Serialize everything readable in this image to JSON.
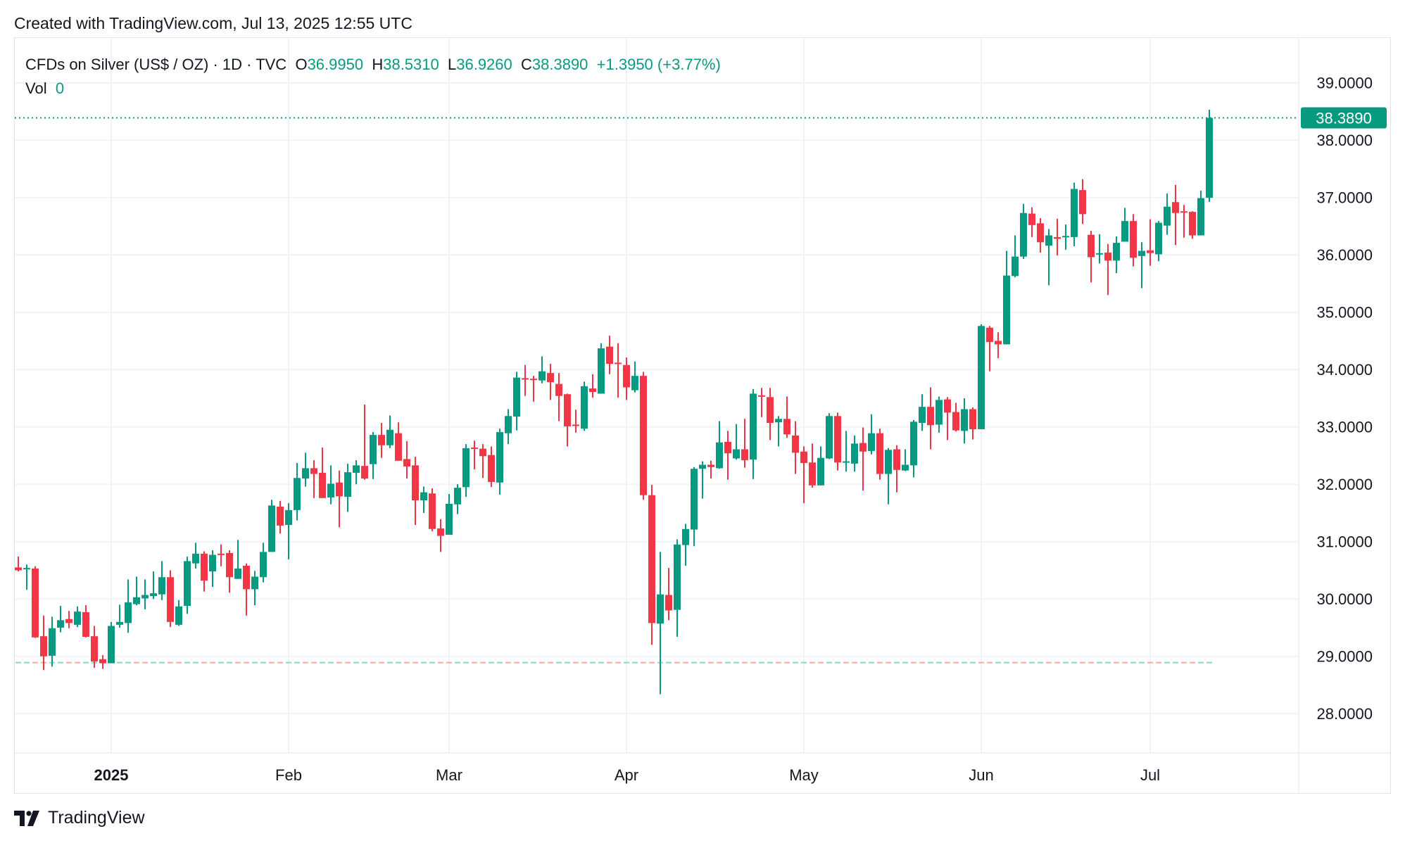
{
  "header": {
    "text": "Created with TradingView.com, Jul 13, 2025 12:55 UTC"
  },
  "legend": {
    "symbol": "CFDs on Silver (US$ / OZ) · 1D · TVC",
    "open_label": "O",
    "open": "36.9950",
    "high_label": "H",
    "high": "38.5310",
    "low_label": "L",
    "low": "36.9260",
    "close_label": "C",
    "close": "38.3890",
    "change": "+1.3950 (+3.77%)",
    "vol_label": "Vol",
    "vol": "0"
  },
  "brand": {
    "logo_icon": "tradingview-logo-icon",
    "name": "TradingView"
  },
  "colors": {
    "up": "#089981",
    "down": "#F23645",
    "grid": "#f0f3fa",
    "text": "#131722"
  },
  "chart_data": {
    "type": "candlestick",
    "title": "",
    "ylim": [
      27.3,
      39.5
    ],
    "grid": true,
    "y_ticks": [
      "28.0000",
      "29.0000",
      "30.0000",
      "31.0000",
      "32.0000",
      "33.0000",
      "34.0000",
      "35.0000",
      "36.0000",
      "37.0000",
      "38.0000",
      "39.0000"
    ],
    "x_ticks": [
      {
        "label": "2025",
        "date": "2025-01-02",
        "bold": true
      },
      {
        "label": "Feb",
        "date": "2025-02-03"
      },
      {
        "label": "Mar",
        "date": "2025-03-03"
      },
      {
        "label": "Apr",
        "date": "2025-04-01"
      },
      {
        "label": "May",
        "date": "2025-05-01"
      },
      {
        "label": "Jun",
        "date": "2025-06-02"
      },
      {
        "label": "Jul",
        "date": "2025-07-01"
      }
    ],
    "last_price": 38.389,
    "last_price_label": "38.3890",
    "reference_line": 28.89,
    "columns": [
      "date",
      "open",
      "high",
      "low",
      "close"
    ],
    "candles": [
      [
        "2024-12-16",
        30.55,
        30.74,
        30.48,
        30.5
      ],
      [
        "2024-12-17",
        30.52,
        30.6,
        30.16,
        30.54
      ],
      [
        "2024-12-18",
        30.53,
        30.57,
        29.32,
        29.33
      ],
      [
        "2024-12-19",
        29.35,
        29.71,
        28.76,
        29.0
      ],
      [
        "2024-12-20",
        29.01,
        29.69,
        28.82,
        29.49
      ],
      [
        "2024-12-23",
        29.5,
        29.88,
        29.42,
        29.63
      ],
      [
        "2024-12-24",
        29.65,
        29.79,
        29.49,
        29.58
      ],
      [
        "2024-12-26",
        29.55,
        29.87,
        29.51,
        29.78
      ],
      [
        "2024-12-27",
        29.77,
        29.89,
        29.33,
        29.34
      ],
      [
        "2024-12-30",
        29.35,
        29.53,
        28.8,
        28.91
      ],
      [
        "2024-12-31",
        28.95,
        29.02,
        28.78,
        28.88
      ],
      [
        "2025-01-02",
        28.88,
        29.6,
        28.88,
        29.53
      ],
      [
        "2025-01-03",
        29.55,
        29.9,
        29.5,
        29.6
      ],
      [
        "2025-01-06",
        29.58,
        30.34,
        29.41,
        29.94
      ],
      [
        "2025-01-07",
        29.91,
        30.39,
        29.89,
        30.03
      ],
      [
        "2025-01-08",
        30.01,
        30.34,
        29.82,
        30.07
      ],
      [
        "2025-01-09",
        30.05,
        30.48,
        30.0,
        30.1
      ],
      [
        "2025-01-10",
        30.08,
        30.66,
        29.98,
        30.38
      ],
      [
        "2025-01-13",
        30.38,
        30.5,
        29.51,
        29.6
      ],
      [
        "2025-01-14",
        29.55,
        29.98,
        29.53,
        29.87
      ],
      [
        "2025-01-15",
        29.88,
        30.74,
        29.74,
        30.66
      ],
      [
        "2025-01-16",
        30.62,
        30.98,
        30.53,
        30.79
      ],
      [
        "2025-01-17",
        30.79,
        30.83,
        30.13,
        30.32
      ],
      [
        "2025-01-21",
        30.48,
        30.85,
        30.21,
        30.77
      ],
      [
        "2025-01-22",
        30.79,
        30.95,
        30.57,
        30.77
      ],
      [
        "2025-01-23",
        30.8,
        30.85,
        30.11,
        30.38
      ],
      [
        "2025-01-24",
        30.35,
        31.03,
        30.35,
        30.53
      ],
      [
        "2025-01-27",
        30.58,
        30.62,
        29.71,
        30.17
      ],
      [
        "2025-01-28",
        30.17,
        30.49,
        29.89,
        30.39
      ],
      [
        "2025-01-29",
        30.38,
        30.98,
        30.29,
        30.82
      ],
      [
        "2025-01-30",
        30.82,
        31.73,
        30.82,
        31.63
      ],
      [
        "2025-01-31",
        31.61,
        31.71,
        31.14,
        31.28
      ],
      [
        "2025-02-03",
        31.29,
        31.67,
        30.69,
        31.55
      ],
      [
        "2025-02-04",
        31.55,
        32.37,
        31.37,
        32.11
      ],
      [
        "2025-02-05",
        32.1,
        32.55,
        31.96,
        32.28
      ],
      [
        "2025-02-06",
        32.28,
        32.42,
        31.76,
        32.18
      ],
      [
        "2025-02-07",
        32.2,
        32.64,
        31.76,
        31.76
      ],
      [
        "2025-02-10",
        31.77,
        32.33,
        31.65,
        32.01
      ],
      [
        "2025-02-11",
        32.03,
        32.24,
        31.25,
        31.79
      ],
      [
        "2025-02-12",
        31.78,
        32.36,
        31.52,
        32.21
      ],
      [
        "2025-02-13",
        32.2,
        32.42,
        32.0,
        32.33
      ],
      [
        "2025-02-14",
        32.32,
        33.39,
        32.08,
        32.1
      ],
      [
        "2025-02-18",
        32.35,
        32.91,
        32.09,
        32.86
      ],
      [
        "2025-02-19",
        32.86,
        33.07,
        32.46,
        32.68
      ],
      [
        "2025-02-20",
        32.68,
        33.2,
        32.63,
        32.95
      ],
      [
        "2025-02-21",
        32.89,
        33.08,
        32.41,
        32.41
      ],
      [
        "2025-02-24",
        32.44,
        32.75,
        32.1,
        32.31
      ],
      [
        "2025-02-25",
        32.33,
        32.48,
        31.29,
        31.72
      ],
      [
        "2025-02-26",
        31.72,
        31.96,
        31.5,
        31.86
      ],
      [
        "2025-02-27",
        31.84,
        31.93,
        31.18,
        31.22
      ],
      [
        "2025-02-28",
        31.23,
        31.39,
        30.82,
        31.1
      ],
      [
        "2025-03-03",
        31.12,
        31.83,
        31.12,
        31.66
      ],
      [
        "2025-03-04",
        31.65,
        32.0,
        31.48,
        31.94
      ],
      [
        "2025-03-05",
        31.95,
        32.7,
        31.78,
        32.63
      ],
      [
        "2025-03-06",
        32.64,
        32.76,
        32.26,
        32.62
      ],
      [
        "2025-03-07",
        32.62,
        32.7,
        32.11,
        32.49
      ],
      [
        "2025-03-10",
        32.51,
        32.66,
        31.95,
        32.04
      ],
      [
        "2025-03-11",
        32.03,
        32.97,
        31.82,
        32.91
      ],
      [
        "2025-03-12",
        32.89,
        33.31,
        32.7,
        33.19
      ],
      [
        "2025-03-13",
        33.18,
        33.96,
        32.94,
        33.86
      ],
      [
        "2025-03-14",
        33.85,
        34.08,
        33.54,
        33.83
      ],
      [
        "2025-03-17",
        33.84,
        33.89,
        33.44,
        33.82
      ],
      [
        "2025-03-18",
        33.81,
        34.23,
        33.76,
        33.97
      ],
      [
        "2025-03-19",
        33.94,
        34.1,
        33.47,
        33.78
      ],
      [
        "2025-03-20",
        33.75,
        33.94,
        33.1,
        33.54
      ],
      [
        "2025-03-21",
        33.57,
        33.58,
        32.66,
        33.01
      ],
      [
        "2025-03-24",
        33.04,
        33.3,
        32.9,
        33.03
      ],
      [
        "2025-03-25",
        32.97,
        33.79,
        32.93,
        33.71
      ],
      [
        "2025-03-26",
        33.67,
        33.92,
        33.51,
        33.61
      ],
      [
        "2025-03-27",
        33.58,
        34.46,
        33.58,
        34.37
      ],
      [
        "2025-03-28",
        34.4,
        34.59,
        33.92,
        34.1
      ],
      [
        "2025-03-31",
        34.12,
        34.46,
        33.51,
        34.1
      ],
      [
        "2025-04-01",
        34.08,
        34.21,
        33.47,
        33.69
      ],
      [
        "2025-04-02",
        33.64,
        34.14,
        33.6,
        33.89
      ],
      [
        "2025-04-03",
        33.89,
        33.96,
        31.73,
        31.81
      ],
      [
        "2025-04-04",
        31.81,
        31.99,
        29.2,
        29.58
      ],
      [
        "2025-04-07",
        29.57,
        30.82,
        28.34,
        30.08
      ],
      [
        "2025-04-08",
        30.07,
        30.54,
        29.63,
        29.8
      ],
      [
        "2025-04-09",
        29.81,
        31.04,
        29.34,
        30.95
      ],
      [
        "2025-04-10",
        30.94,
        31.31,
        30.58,
        31.22
      ],
      [
        "2025-04-11",
        31.21,
        32.3,
        30.92,
        32.27
      ],
      [
        "2025-04-14",
        32.27,
        32.4,
        31.75,
        32.34
      ],
      [
        "2025-04-15",
        32.34,
        32.41,
        32.1,
        32.3
      ],
      [
        "2025-04-16",
        32.28,
        33.1,
        32.27,
        32.73
      ],
      [
        "2025-04-17",
        32.74,
        32.93,
        32.08,
        32.54
      ],
      [
        "2025-04-21",
        32.45,
        33.05,
        32.43,
        32.61
      ],
      [
        "2025-04-22",
        32.61,
        33.14,
        32.29,
        32.42
      ],
      [
        "2025-04-23",
        32.43,
        33.66,
        32.09,
        33.58
      ],
      [
        "2025-04-24",
        33.55,
        33.68,
        33.17,
        33.53
      ],
      [
        "2025-04-25",
        33.52,
        33.68,
        32.77,
        33.07
      ],
      [
        "2025-04-28",
        33.08,
        33.19,
        32.66,
        33.14
      ],
      [
        "2025-04-29",
        33.14,
        33.53,
        32.81,
        32.87
      ],
      [
        "2025-04-30",
        32.85,
        33.1,
        32.18,
        32.55
      ],
      [
        "2025-05-01",
        32.57,
        32.66,
        31.67,
        32.37
      ],
      [
        "2025-05-02",
        32.38,
        32.71,
        31.94,
        31.98
      ],
      [
        "2025-05-05",
        31.98,
        32.66,
        31.98,
        32.46
      ],
      [
        "2025-05-06",
        32.45,
        33.24,
        32.44,
        33.19
      ],
      [
        "2025-05-07",
        33.19,
        33.25,
        32.24,
        32.38
      ],
      [
        "2025-05-08",
        32.39,
        32.93,
        32.22,
        32.4
      ],
      [
        "2025-05-09",
        32.36,
        32.85,
        32.22,
        32.71
      ],
      [
        "2025-05-12",
        32.72,
        32.99,
        31.89,
        32.57
      ],
      [
        "2025-05-13",
        32.58,
        33.22,
        32.52,
        32.89
      ],
      [
        "2025-05-14",
        32.89,
        32.97,
        32.08,
        32.18
      ],
      [
        "2025-05-15",
        32.18,
        32.63,
        31.65,
        32.6
      ],
      [
        "2025-05-16",
        32.61,
        32.68,
        31.86,
        32.25
      ],
      [
        "2025-05-19",
        32.24,
        32.61,
        32.23,
        32.34
      ],
      [
        "2025-05-20",
        32.33,
        33.12,
        32.12,
        33.09
      ],
      [
        "2025-05-21",
        33.07,
        33.57,
        32.93,
        33.35
      ],
      [
        "2025-05-22",
        33.35,
        33.69,
        32.61,
        33.03
      ],
      [
        "2025-05-23",
        33.04,
        33.53,
        32.9,
        33.47
      ],
      [
        "2025-05-27",
        33.48,
        33.52,
        32.77,
        33.25
      ],
      [
        "2025-05-28",
        33.26,
        33.42,
        32.92,
        32.94
      ],
      [
        "2025-05-29",
        32.93,
        33.5,
        32.71,
        33.31
      ],
      [
        "2025-05-30",
        33.31,
        33.34,
        32.78,
        32.96
      ],
      [
        "2025-06-02",
        32.96,
        34.79,
        32.96,
        34.76
      ],
      [
        "2025-06-03",
        34.73,
        34.76,
        33.97,
        34.48
      ],
      [
        "2025-06-04",
        34.5,
        34.65,
        34.2,
        34.44
      ],
      [
        "2025-06-05",
        34.44,
        36.07,
        34.44,
        35.64
      ],
      [
        "2025-06-06",
        35.63,
        36.34,
        35.61,
        35.97
      ],
      [
        "2025-06-09",
        35.97,
        36.89,
        35.93,
        36.73
      ],
      [
        "2025-06-10",
        36.72,
        36.83,
        36.31,
        36.52
      ],
      [
        "2025-06-11",
        36.55,
        36.64,
        36.04,
        36.22
      ],
      [
        "2025-06-12",
        36.16,
        36.45,
        35.47,
        36.34
      ],
      [
        "2025-06-13",
        36.31,
        36.63,
        35.99,
        36.28
      ],
      [
        "2025-06-16",
        36.31,
        36.53,
        36.09,
        36.33
      ],
      [
        "2025-06-17",
        36.31,
        37.26,
        36.15,
        37.15
      ],
      [
        "2025-06-18",
        37.13,
        37.32,
        36.54,
        36.71
      ],
      [
        "2025-06-20",
        36.35,
        36.42,
        35.52,
        35.96
      ],
      [
        "2025-06-23",
        36.01,
        36.36,
        35.85,
        36.03
      ],
      [
        "2025-06-24",
        36.04,
        36.19,
        35.3,
        35.9
      ],
      [
        "2025-06-25",
        35.9,
        36.32,
        35.68,
        36.21
      ],
      [
        "2025-06-26",
        36.23,
        36.82,
        36.23,
        36.59
      ],
      [
        "2025-06-27",
        36.59,
        36.71,
        35.8,
        35.95
      ],
      [
        "2025-06-30",
        35.98,
        36.22,
        35.42,
        36.07
      ],
      [
        "2025-07-01",
        36.08,
        36.62,
        35.81,
        36.03
      ],
      [
        "2025-07-02",
        36.01,
        36.59,
        35.89,
        36.56
      ],
      [
        "2025-07-03",
        36.51,
        37.07,
        36.35,
        36.84
      ],
      [
        "2025-07-07",
        36.92,
        37.22,
        36.17,
        36.73
      ],
      [
        "2025-07-08",
        36.76,
        36.87,
        36.3,
        36.74
      ],
      [
        "2025-07-09",
        36.75,
        36.76,
        36.28,
        36.34
      ],
      [
        "2025-07-10",
        36.34,
        37.12,
        36.34,
        36.99
      ],
      [
        "2025-07-11",
        36.995,
        38.531,
        36.926,
        38.389
      ]
    ]
  }
}
